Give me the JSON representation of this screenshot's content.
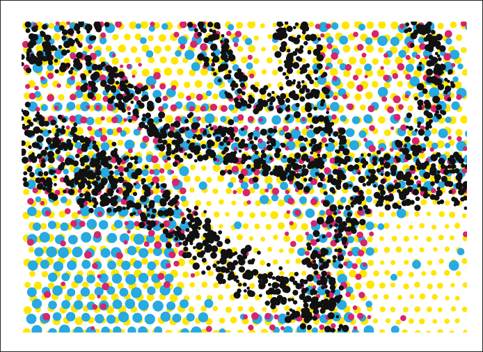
{
  "image": {
    "subject": "halftone-print-closeup",
    "colors": {
      "cyan": "#27a9e1",
      "magenta": "#d6246e",
      "yellow": "#ffe600",
      "black": "#111111",
      "paper": "#ffffff"
    }
  }
}
